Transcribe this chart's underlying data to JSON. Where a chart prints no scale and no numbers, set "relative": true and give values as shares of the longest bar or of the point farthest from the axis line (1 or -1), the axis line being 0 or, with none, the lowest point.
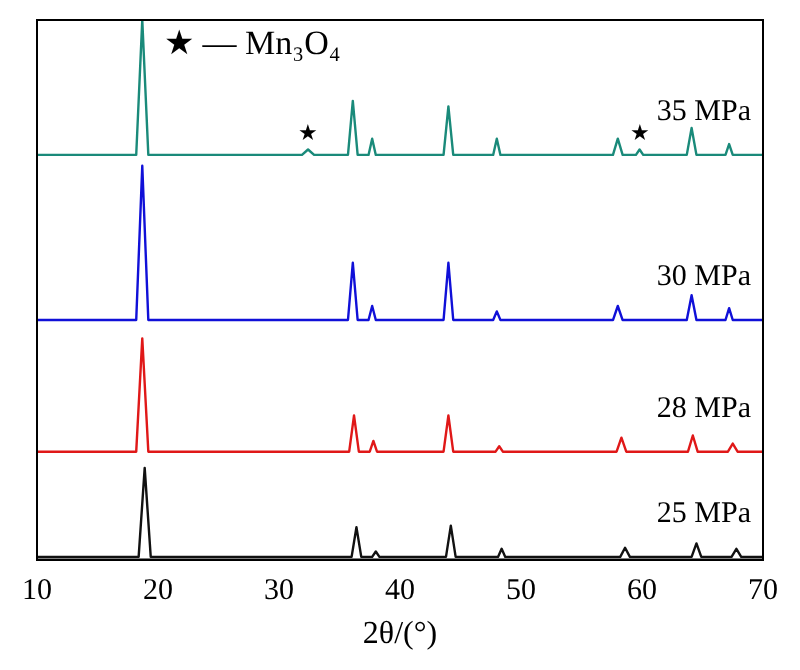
{
  "chart_data": {
    "type": "line",
    "relative": true,
    "xlabel": "2θ/(°)",
    "xlim": [
      10,
      70
    ],
    "xticks": [
      10,
      20,
      30,
      40,
      50,
      60,
      70
    ],
    "legend": false,
    "grid": false,
    "marker": "none",
    "line_style": "solid",
    "annotations": [
      "★ — Mn₃O₄",
      {
        "text": "★",
        "x": 32.4,
        "y": 0.76
      },
      {
        "text": "★",
        "x": 59.8,
        "y": 0.76
      }
    ],
    "series": [
      {
        "name": "35 MPa",
        "color": "#1a8a7a",
        "x": [
          10,
          18.2,
          18.7,
          19.2,
          31.9,
          32.4,
          32.9,
          35.7,
          36.1,
          36.5,
          37.4,
          37.7,
          38.0,
          43.6,
          44.0,
          44.4,
          47.7,
          48.0,
          48.3,
          57.6,
          58.0,
          58.4,
          59.5,
          59.8,
          60.1,
          63.7,
          64.1,
          64.5,
          66.9,
          67.2,
          67.5,
          70
        ],
        "values": [
          0.75,
          0.75,
          1,
          0.75,
          0.75,
          0.76,
          0.75,
          0.75,
          0.85,
          0.75,
          0.75,
          0.78,
          0.75,
          0.75,
          0.84,
          0.75,
          0.75,
          0.78,
          0.75,
          0.75,
          0.78,
          0.75,
          0.75,
          0.76,
          0.75,
          0.75,
          0.8,
          0.75,
          0.75,
          0.77,
          0.75,
          0.75
        ]
      },
      {
        "name": "30 MPa",
        "color": "#1010d8",
        "x": [
          10,
          18.2,
          18.7,
          19.2,
          35.7,
          36.1,
          36.5,
          37.4,
          37.7,
          38.0,
          43.6,
          44.0,
          44.4,
          47.7,
          48.0,
          48.3,
          57.6,
          58.0,
          58.4,
          63.7,
          64.1,
          64.5,
          66.9,
          67.2,
          67.5,
          70
        ],
        "values": [
          0.444,
          0.444,
          0.73,
          0.444,
          0.444,
          0.55,
          0.444,
          0.444,
          0.47,
          0.444,
          0.444,
          0.55,
          0.444,
          0.444,
          0.46,
          0.444,
          0.444,
          0.47,
          0.444,
          0.444,
          0.49,
          0.444,
          0.444,
          0.466,
          0.444,
          0.444
        ]
      },
      {
        "name": "28 MPa",
        "color": "#e01818",
        "x": [
          10,
          18.2,
          18.7,
          19.2,
          35.8,
          36.2,
          36.6,
          37.5,
          37.8,
          38.1,
          43.6,
          44.0,
          44.4,
          47.9,
          48.2,
          48.5,
          57.9,
          58.3,
          58.7,
          63.8,
          64.2,
          64.6,
          67.1,
          67.5,
          67.9,
          70
        ],
        "values": [
          0.2,
          0.2,
          0.41,
          0.2,
          0.2,
          0.267,
          0.2,
          0.2,
          0.22,
          0.2,
          0.2,
          0.267,
          0.2,
          0.2,
          0.21,
          0.2,
          0.2,
          0.226,
          0.2,
          0.2,
          0.23,
          0.2,
          0.2,
          0.215,
          0.2,
          0.2
        ]
      },
      {
        "name": "25 MPa",
        "color": "#111111",
        "x": [
          10,
          18.4,
          18.9,
          19.4,
          36.0,
          36.4,
          36.8,
          37.7,
          38.0,
          38.3,
          43.8,
          44.2,
          44.6,
          48.1,
          48.4,
          48.7,
          58.2,
          58.6,
          59.0,
          64.1,
          64.5,
          64.9,
          67.4,
          67.8,
          68.2,
          70
        ],
        "values": [
          0.005,
          0.005,
          0.17,
          0.005,
          0.005,
          0.06,
          0.005,
          0.005,
          0.015,
          0.005,
          0.005,
          0.063,
          0.005,
          0.005,
          0.02,
          0.005,
          0.005,
          0.022,
          0.005,
          0.005,
          0.03,
          0.005,
          0.005,
          0.02,
          0.005,
          0.005
        ]
      }
    ]
  }
}
